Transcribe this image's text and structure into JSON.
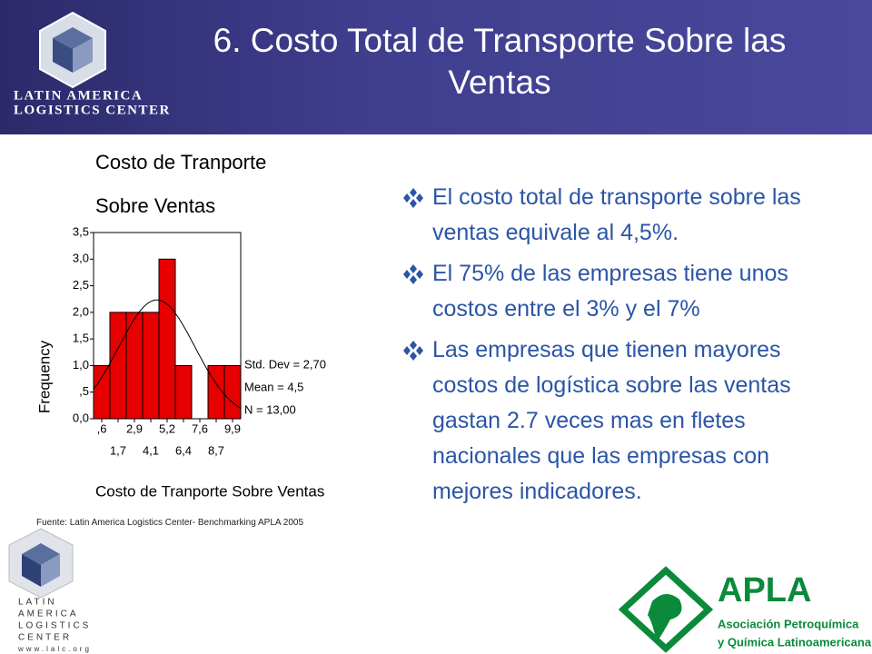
{
  "slide": {
    "title": "6. Costo Total de Transporte Sobre las Ventas",
    "logo_top": [
      "LATIN AMERICA",
      "LOGISTICS CENTER"
    ],
    "bullets": [
      "El costo total de transporte sobre las ventas equivale al 4,5%.",
      "El 75% de las empresas tiene unos costos entre el 3% y el 7%",
      "Las empresas que tienen mayores costos de logística sobre las ventas gastan 2.7 veces mas en fletes nacionales que las empresas con mejores indicadores."
    ],
    "source": "Fuente: Latin America Logistics Center- Benchmarking APLA 2005",
    "logo_bottom": [
      "LATIN",
      "AMERICA",
      "LOGISTICS",
      "CENTER",
      "www.lalc.org"
    ],
    "apla": {
      "name": "APLA",
      "lines": [
        "Asociación Petroquímica",
        "y Química Latinoamericana"
      ]
    }
  },
  "chart_data": {
    "type": "histogram",
    "title_lines": [
      "Costo de Tranporte",
      "Sobre Ventas"
    ],
    "x_label": "Costo de Tranporte Sobre Ventas",
    "y_label": "Frequency",
    "bins": [
      0,
      1.1625,
      2.325,
      3.4875,
      4.65,
      5.8125,
      6.975,
      8.1375,
      9.3,
      10.4625
    ],
    "values": [
      1,
      2,
      2,
      2,
      3,
      1,
      0,
      1,
      1
    ],
    "color": "#e60000",
    "xlim": [
      0,
      10.4625
    ],
    "xticks": [
      {
        "value": 0.58125,
        "label": ",6"
      },
      {
        "value": 1.74375,
        "label": "1,7"
      },
      {
        "value": 2.90625,
        "label": "2,9"
      },
      {
        "value": 4.06875,
        "label": "4,1"
      },
      {
        "value": 5.23125,
        "label": "5,2"
      },
      {
        "value": 6.39375,
        "label": "6,4"
      },
      {
        "value": 7.55625,
        "label": "7,6"
      },
      {
        "value": 8.71875,
        "label": "8,7"
      },
      {
        "value": 9.88125,
        "label": "9,9"
      }
    ],
    "ylim": [
      0,
      3.5
    ],
    "yticks": [
      {
        "value": 0,
        "label": "0,0"
      },
      {
        "value": 0.5,
        "label": ",5"
      },
      {
        "value": 1,
        "label": "1,0"
      },
      {
        "value": 1.5,
        "label": "1,5"
      },
      {
        "value": 2,
        "label": "2,0"
      },
      {
        "value": 2.5,
        "label": "2,5"
      },
      {
        "value": 3,
        "label": "3,0"
      },
      {
        "value": 3.5,
        "label": "3,5"
      }
    ],
    "fit": {
      "std": 2.7,
      "mean": 4.5,
      "n": 13
    },
    "fit_labels": [
      "Std. Dev = 2,70",
      "Mean = 4,5",
      "N = 13,00"
    ]
  }
}
